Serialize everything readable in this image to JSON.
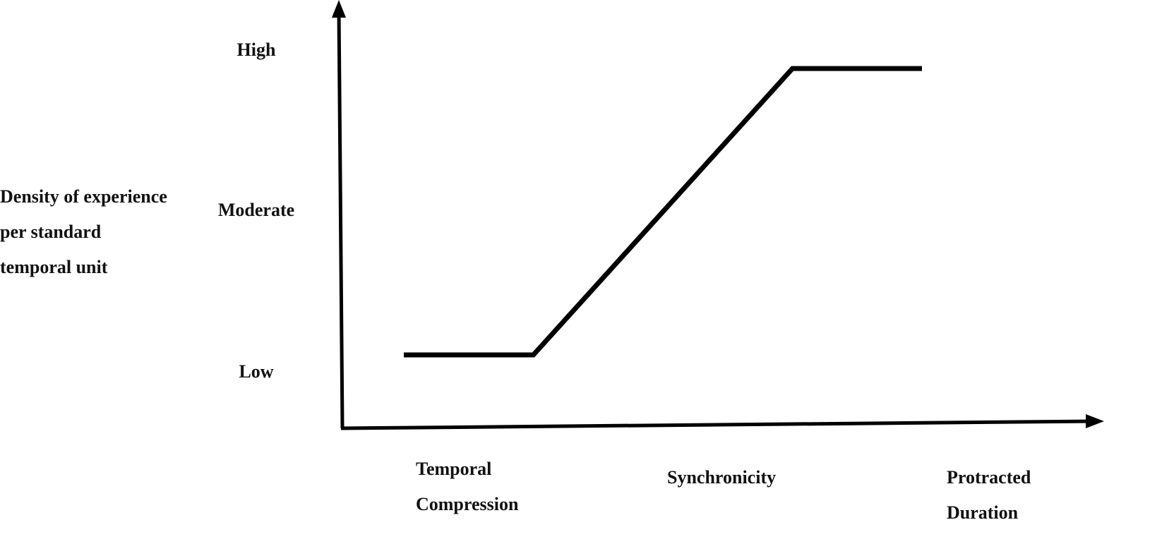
{
  "chart_data": {
    "type": "line",
    "xlabel": "",
    "ylabel_lines": [
      "Density of experience",
      "per standard",
      "temporal unit"
    ],
    "x_categories": [
      {
        "lines": [
          "Temporal",
          "Compression"
        ]
      },
      {
        "lines": [
          "Synchronicity"
        ]
      },
      {
        "lines": [
          "Protracted",
          "Duration"
        ]
      }
    ],
    "y_levels": [
      "Low",
      "Moderate",
      "High"
    ],
    "ylim": [
      -0.5,
      2.2
    ],
    "grid": false,
    "legend": "none",
    "series": [
      {
        "points": [
          {
            "x": 0.0,
            "y": 0.0
          },
          {
            "x": 0.5,
            "y": 0.0
          },
          {
            "x": 1.5,
            "y": 1.78
          },
          {
            "x": 2.0,
            "y": 1.78
          }
        ]
      }
    ],
    "colors": {
      "line": "#000000",
      "axis": "#000000",
      "text": "#111111"
    }
  }
}
